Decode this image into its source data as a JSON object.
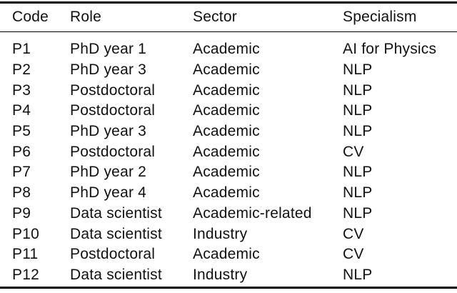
{
  "table": {
    "columns": [
      {
        "key": "code",
        "label": "Code"
      },
      {
        "key": "role",
        "label": "Role"
      },
      {
        "key": "sector",
        "label": "Sector"
      },
      {
        "key": "specialism",
        "label": "Specialism"
      }
    ],
    "rows": [
      [
        "P1",
        "PhD year 1",
        "Academic",
        "AI for Physics"
      ],
      [
        "P2",
        "PhD year 3",
        "Academic",
        "NLP"
      ],
      [
        "P3",
        "Postdoctoral",
        "Academic",
        "NLP"
      ],
      [
        "P4",
        "Postdoctoral",
        "Academic",
        "NLP"
      ],
      [
        "P5",
        "PhD year 3",
        "Academic",
        "NLP"
      ],
      [
        "P6",
        "Postdoctoral",
        "Academic",
        "CV"
      ],
      [
        "P7",
        "PhD year 2",
        "Academic",
        "NLP"
      ],
      [
        "P8",
        "PhD year 4",
        "Academic",
        "NLP"
      ],
      [
        "P9",
        "Data scientist",
        "Academic-related",
        "NLP"
      ],
      [
        "P10",
        "Data scientist",
        "Industry",
        "CV"
      ],
      [
        "P11",
        "Postdoctoral",
        "Academic",
        "CV"
      ],
      [
        "P12",
        "Data scientist",
        "Industry",
        "NLP"
      ]
    ]
  },
  "colors": {
    "text": "#111111",
    "rule": "#000000",
    "background": "#ffffff"
  }
}
